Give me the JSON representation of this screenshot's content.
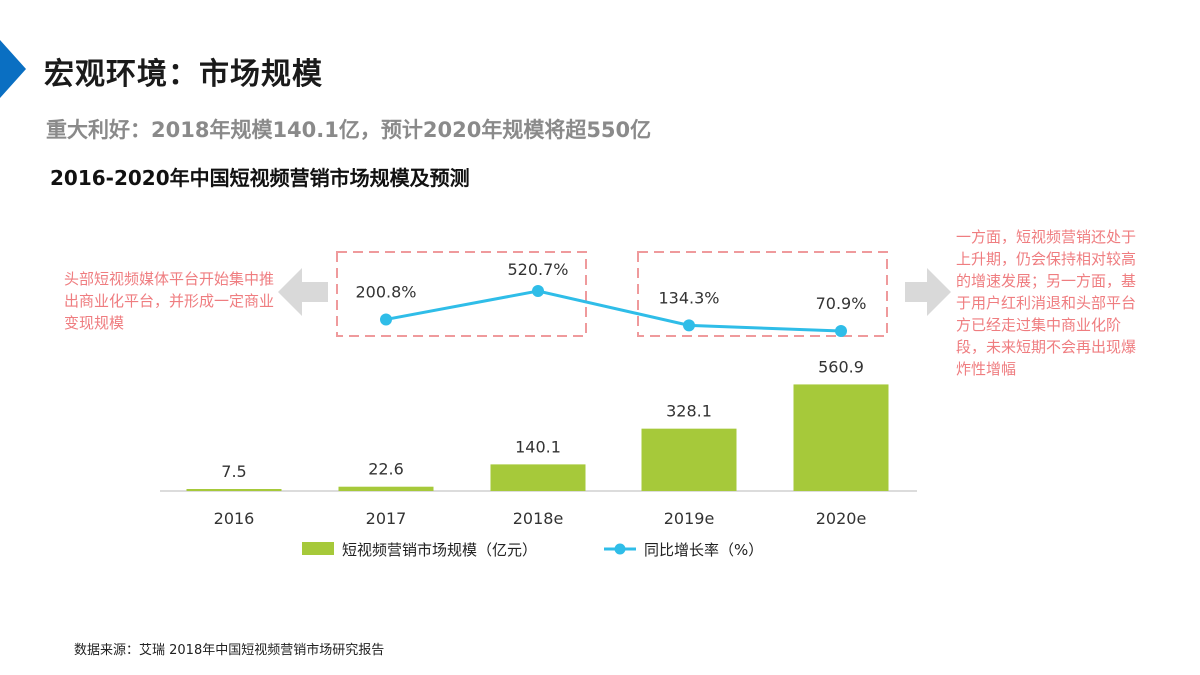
{
  "header": {
    "title": "宏观环境：市场规模",
    "subtitle": "重大利好：2018年规模140.1亿，预计2020年规模将超550亿",
    "chart_title": "2016-2020年中国短视频营销市场规模及预测"
  },
  "notes": {
    "left": "头部短视频媒体平台开始集中推出商业化平台，并形成一定商业变现规模",
    "right": "一方面，短视频营销还处于上升期，仍会保持相对较高的增速发展；另一方面，基于用户红利消退和头部平台方已经走过集中商业化阶段，未来短期不会再出现爆炸性增幅"
  },
  "source": "数据来源：艾瑞 2018年中国短视频营销市场研究报告",
  "colors": {
    "accent": "#0a6fc2",
    "bar": "#a6c93a",
    "line": "#2fbde8",
    "note": "#ef7d80",
    "arrow": "#d9d9d9"
  },
  "chart_data": {
    "type": "bar",
    "categories": [
      "2016",
      "2017",
      "2018e",
      "2019e",
      "2020e"
    ],
    "series": [
      {
        "name": "短视频营销市场规模（亿元）",
        "type": "bar",
        "values": [
          7.5,
          22.6,
          140.1,
          328.1,
          560.9
        ],
        "labels": [
          "7.5",
          "22.6",
          "140.1",
          "328.1",
          "560.9"
        ]
      },
      {
        "name": "同比增长率（%）",
        "type": "line",
        "values": [
          null,
          200.8,
          520.7,
          134.3,
          70.9
        ],
        "labels": [
          "",
          "200.8%",
          "520.7%",
          "134.3%",
          "70.9%"
        ]
      }
    ],
    "legend_position": "bottom",
    "grid": false
  }
}
